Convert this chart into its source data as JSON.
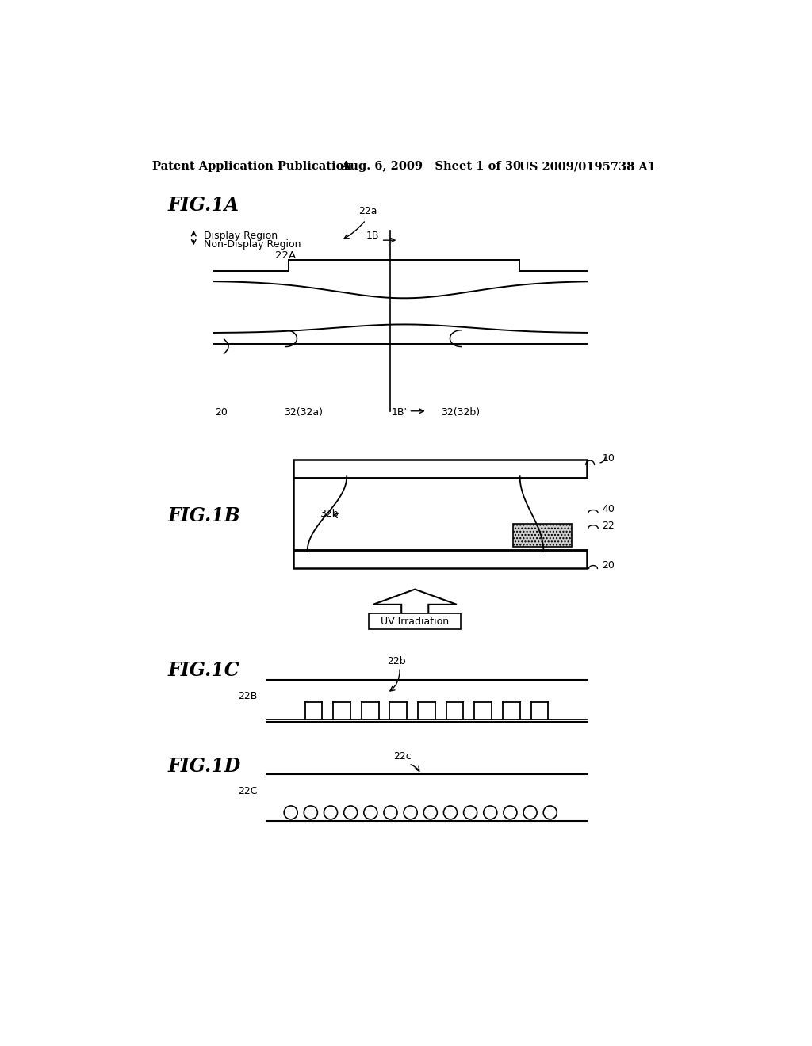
{
  "bg_color": "#ffffff",
  "header_text": "Patent Application Publication",
  "header_date": "Aug. 6, 2009   Sheet 1 of 30",
  "header_patent": "US 2009/0195738 A1",
  "fig1a_label": "FIG.1A",
  "fig1b_label": "FIG.1B",
  "fig1c_label": "FIG.1C",
  "fig1d_label": "FIG.1D"
}
